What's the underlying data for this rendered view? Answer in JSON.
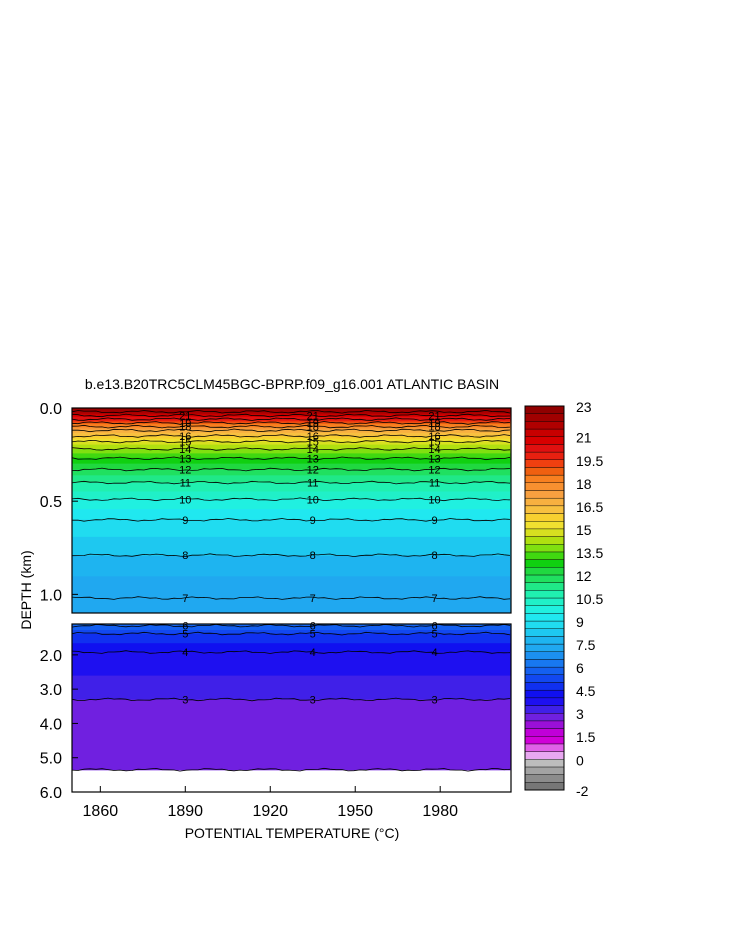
{
  "chart_data": {
    "type": "heatmap",
    "subtype": "filled contour (depth vs time)",
    "title": "b.e13.B20TRC5CLM45BGC-BPRP.f09_g16.001 ATLANTIC BASIN",
    "xlabel": "POTENTIAL TEMPERATURE (°C)",
    "ylabel": "DEPTH (km)",
    "x_ticks": [
      "1860",
      "1890",
      "1920",
      "1950",
      "1980"
    ],
    "x_tick_values": [
      1860,
      1890,
      1920,
      1950,
      1980
    ],
    "xlim": [
      1850,
      2005
    ],
    "upper_panel": {
      "ylim": [
        0.0,
        1.1
      ],
      "y_ticks": [
        "0.0",
        "0.5",
        "1.0"
      ],
      "y_tick_values": [
        0.0,
        0.5,
        1.0
      ]
    },
    "lower_panel": {
      "ylim": [
        1.1,
        6.0
      ],
      "y_ticks": [
        "2.0",
        "3.0",
        "4.0",
        "5.0",
        "6.0"
      ],
      "y_tick_values": [
        2.0,
        3.0,
        4.0,
        5.0,
        6.0
      ],
      "ocean_floor_depth": 5.35
    },
    "isotherm_depths_upper": [
      {
        "temp": 23,
        "depth": 0.0
      },
      {
        "temp": 22,
        "depth": 0.02
      },
      {
        "temp": 21,
        "depth": 0.04
      },
      {
        "temp": 20,
        "depth": 0.06
      },
      {
        "temp": 19,
        "depth": 0.08
      },
      {
        "temp": 18,
        "depth": 0.1
      },
      {
        "temp": 17,
        "depth": 0.12
      },
      {
        "temp": 16,
        "depth": 0.15
      },
      {
        "temp": 15,
        "depth": 0.18
      },
      {
        "temp": 14,
        "depth": 0.22
      },
      {
        "temp": 13,
        "depth": 0.27
      },
      {
        "temp": 12,
        "depth": 0.33
      },
      {
        "temp": 11,
        "depth": 0.4
      },
      {
        "temp": 10,
        "depth": 0.49
      },
      {
        "temp": 9,
        "depth": 0.6
      },
      {
        "temp": 8,
        "depth": 0.79
      },
      {
        "temp": 7,
        "depth": 1.02
      }
    ],
    "isotherm_depths_lower": [
      {
        "temp": 6,
        "depth": 1.15
      },
      {
        "temp": 5,
        "depth": 1.38
      },
      {
        "temp": 4,
        "depth": 1.92
      },
      {
        "temp": 3,
        "depth": 3.3
      },
      {
        "temp": 2.5,
        "depth": 5.35
      }
    ],
    "contour_labels_upper": [
      "21",
      "19",
      "18",
      "16",
      "15",
      "14",
      "13",
      "12",
      "11",
      "10",
      "9",
      "8",
      "7"
    ],
    "contour_labels_lower": [
      "6",
      "5",
      "4",
      "3"
    ],
    "contour_label_years": [
      1890,
      1935,
      1978
    ],
    "colorbar": {
      "levels": [
        -2,
        -1.5,
        -1,
        -0.5,
        0,
        0.5,
        1,
        1.5,
        2,
        2.5,
        3,
        3.5,
        4,
        4.5,
        5,
        5.5,
        6,
        6.5,
        7,
        7.5,
        8,
        8.5,
        9,
        9.5,
        10,
        10.5,
        11,
        11.5,
        12,
        12.5,
        13,
        13.5,
        14,
        14.5,
        15,
        15.5,
        16,
        16.5,
        17,
        17.5,
        18,
        18.5,
        19,
        19.5,
        20,
        20.5,
        21,
        21.5,
        22,
        22.5,
        23
      ],
      "labels": [
        "23",
        "21",
        "19.5",
        "18",
        "16.5",
        "15",
        "13.5",
        "12",
        "10.5",
        "9",
        "7.5",
        "6",
        "4.5",
        "3",
        "1.5",
        "0",
        "-2"
      ],
      "colors": [
        "#777777",
        "#8c8c8c",
        "#a3a3a3",
        "#bdbdbd",
        "#e8a8f0",
        "#e060e8",
        "#d000d8",
        "#c000d8",
        "#9a10d8",
        "#7020e0",
        "#4020e8",
        "#1e10f0",
        "#1010f0",
        "#1030f0",
        "#1248f0",
        "#1460f0",
        "#1878f0",
        "#1c90f0",
        "#20a8f0",
        "#1eb4f0",
        "#1ec8f0",
        "#20dcf0",
        "#20e8f0",
        "#20f0e0",
        "#20f0c8",
        "#20f0b0",
        "#20e888",
        "#20e060",
        "#20d840",
        "#10d010",
        "#40d810",
        "#80e010",
        "#b0e010",
        "#d8e020",
        "#f0e030",
        "#f8d030",
        "#f8c040",
        "#f8b040",
        "#f8a040",
        "#f89030",
        "#f88020",
        "#f06010",
        "#f04010",
        "#e82010",
        "#e01010",
        "#d80000",
        "#c80000",
        "#b00000",
        "#a00000",
        "#900000"
      ]
    }
  }
}
